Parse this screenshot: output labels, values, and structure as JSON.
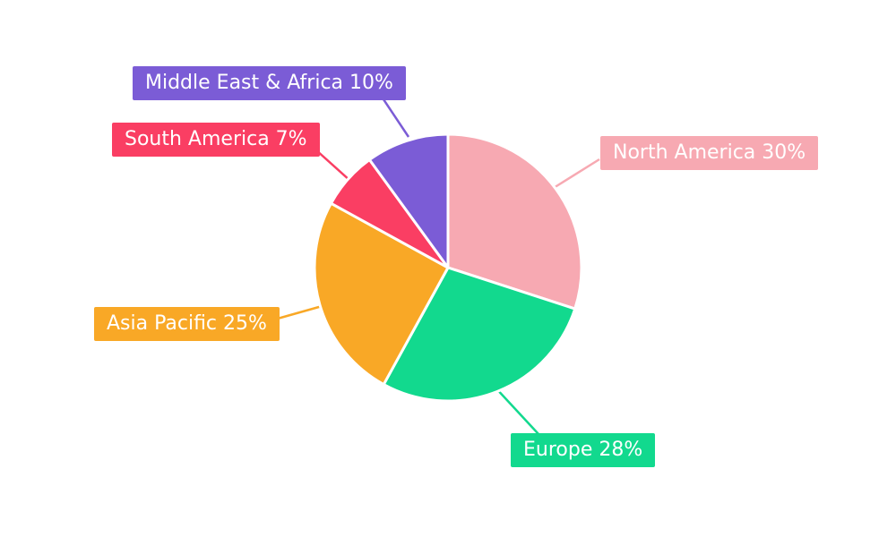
{
  "page": {
    "background_color": "#ffffff"
  },
  "chart_data": {
    "type": "pie",
    "title": "",
    "categories": [
      "North America",
      "Europe",
      "Asia Pacific",
      "South America",
      "Middle East & Africa"
    ],
    "values": [
      30,
      28,
      25,
      7,
      10
    ],
    "unit": "%",
    "colors": [
      "#F7A9B2",
      "#12D98E",
      "#F9A826",
      "#FA3E63",
      "#7B5CD6"
    ],
    "labels": [
      "North America 30%",
      "Europe 28%",
      "Asia Pacific 25%",
      "South America 7%",
      "Middle East & Africa 10%"
    ],
    "start_angle": "top",
    "direction": "clockwise",
    "legend_position": "outside-callouts",
    "slice_gap_color": "#ffffff"
  }
}
